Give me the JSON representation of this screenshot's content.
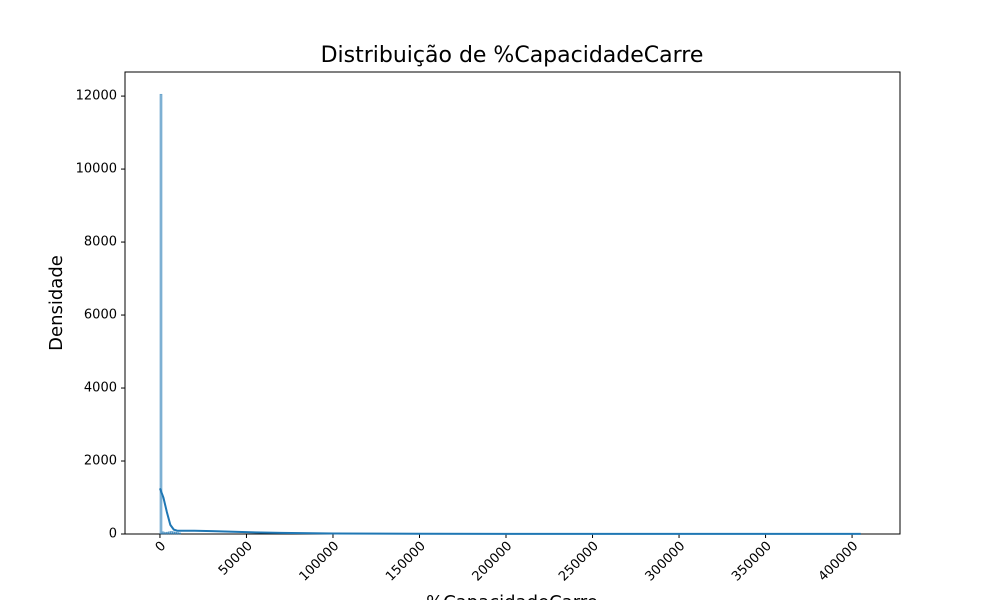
{
  "chart_data": {
    "type": "histogram",
    "title": "Distribuição de %CapacidadeCarre",
    "x_label": "%CapacidadeCarre",
    "y_label": "Densidade",
    "bins": [
      0,
      1200,
      2400,
      3600,
      4800,
      6000,
      7200,
      8400,
      9600,
      10800,
      12000
    ],
    "counts": [
      12050,
      60,
      40,
      50,
      60,
      70,
      60,
      50,
      40,
      30
    ],
    "color": "#1f77b4",
    "kde": {
      "color": "#1f77b4",
      "x": [
        0,
        2000,
        4000,
        6000,
        8000,
        10000,
        20000,
        30000,
        50000,
        70000,
        100000,
        150000,
        200000,
        300000,
        405000
      ],
      "y": [
        1250,
        1000,
        600,
        250,
        120,
        90,
        90,
        80,
        50,
        30,
        15,
        8,
        5,
        3,
        2
      ]
    },
    "xlim": [
      -20200,
      427700
    ],
    "ylim": [
      0,
      12660
    ],
    "xticks": [
      0,
      50000,
      100000,
      150000,
      200000,
      250000,
      300000,
      350000,
      400000
    ],
    "yticks": [
      0,
      2000,
      4000,
      6000,
      8000,
      10000,
      12000
    ]
  }
}
